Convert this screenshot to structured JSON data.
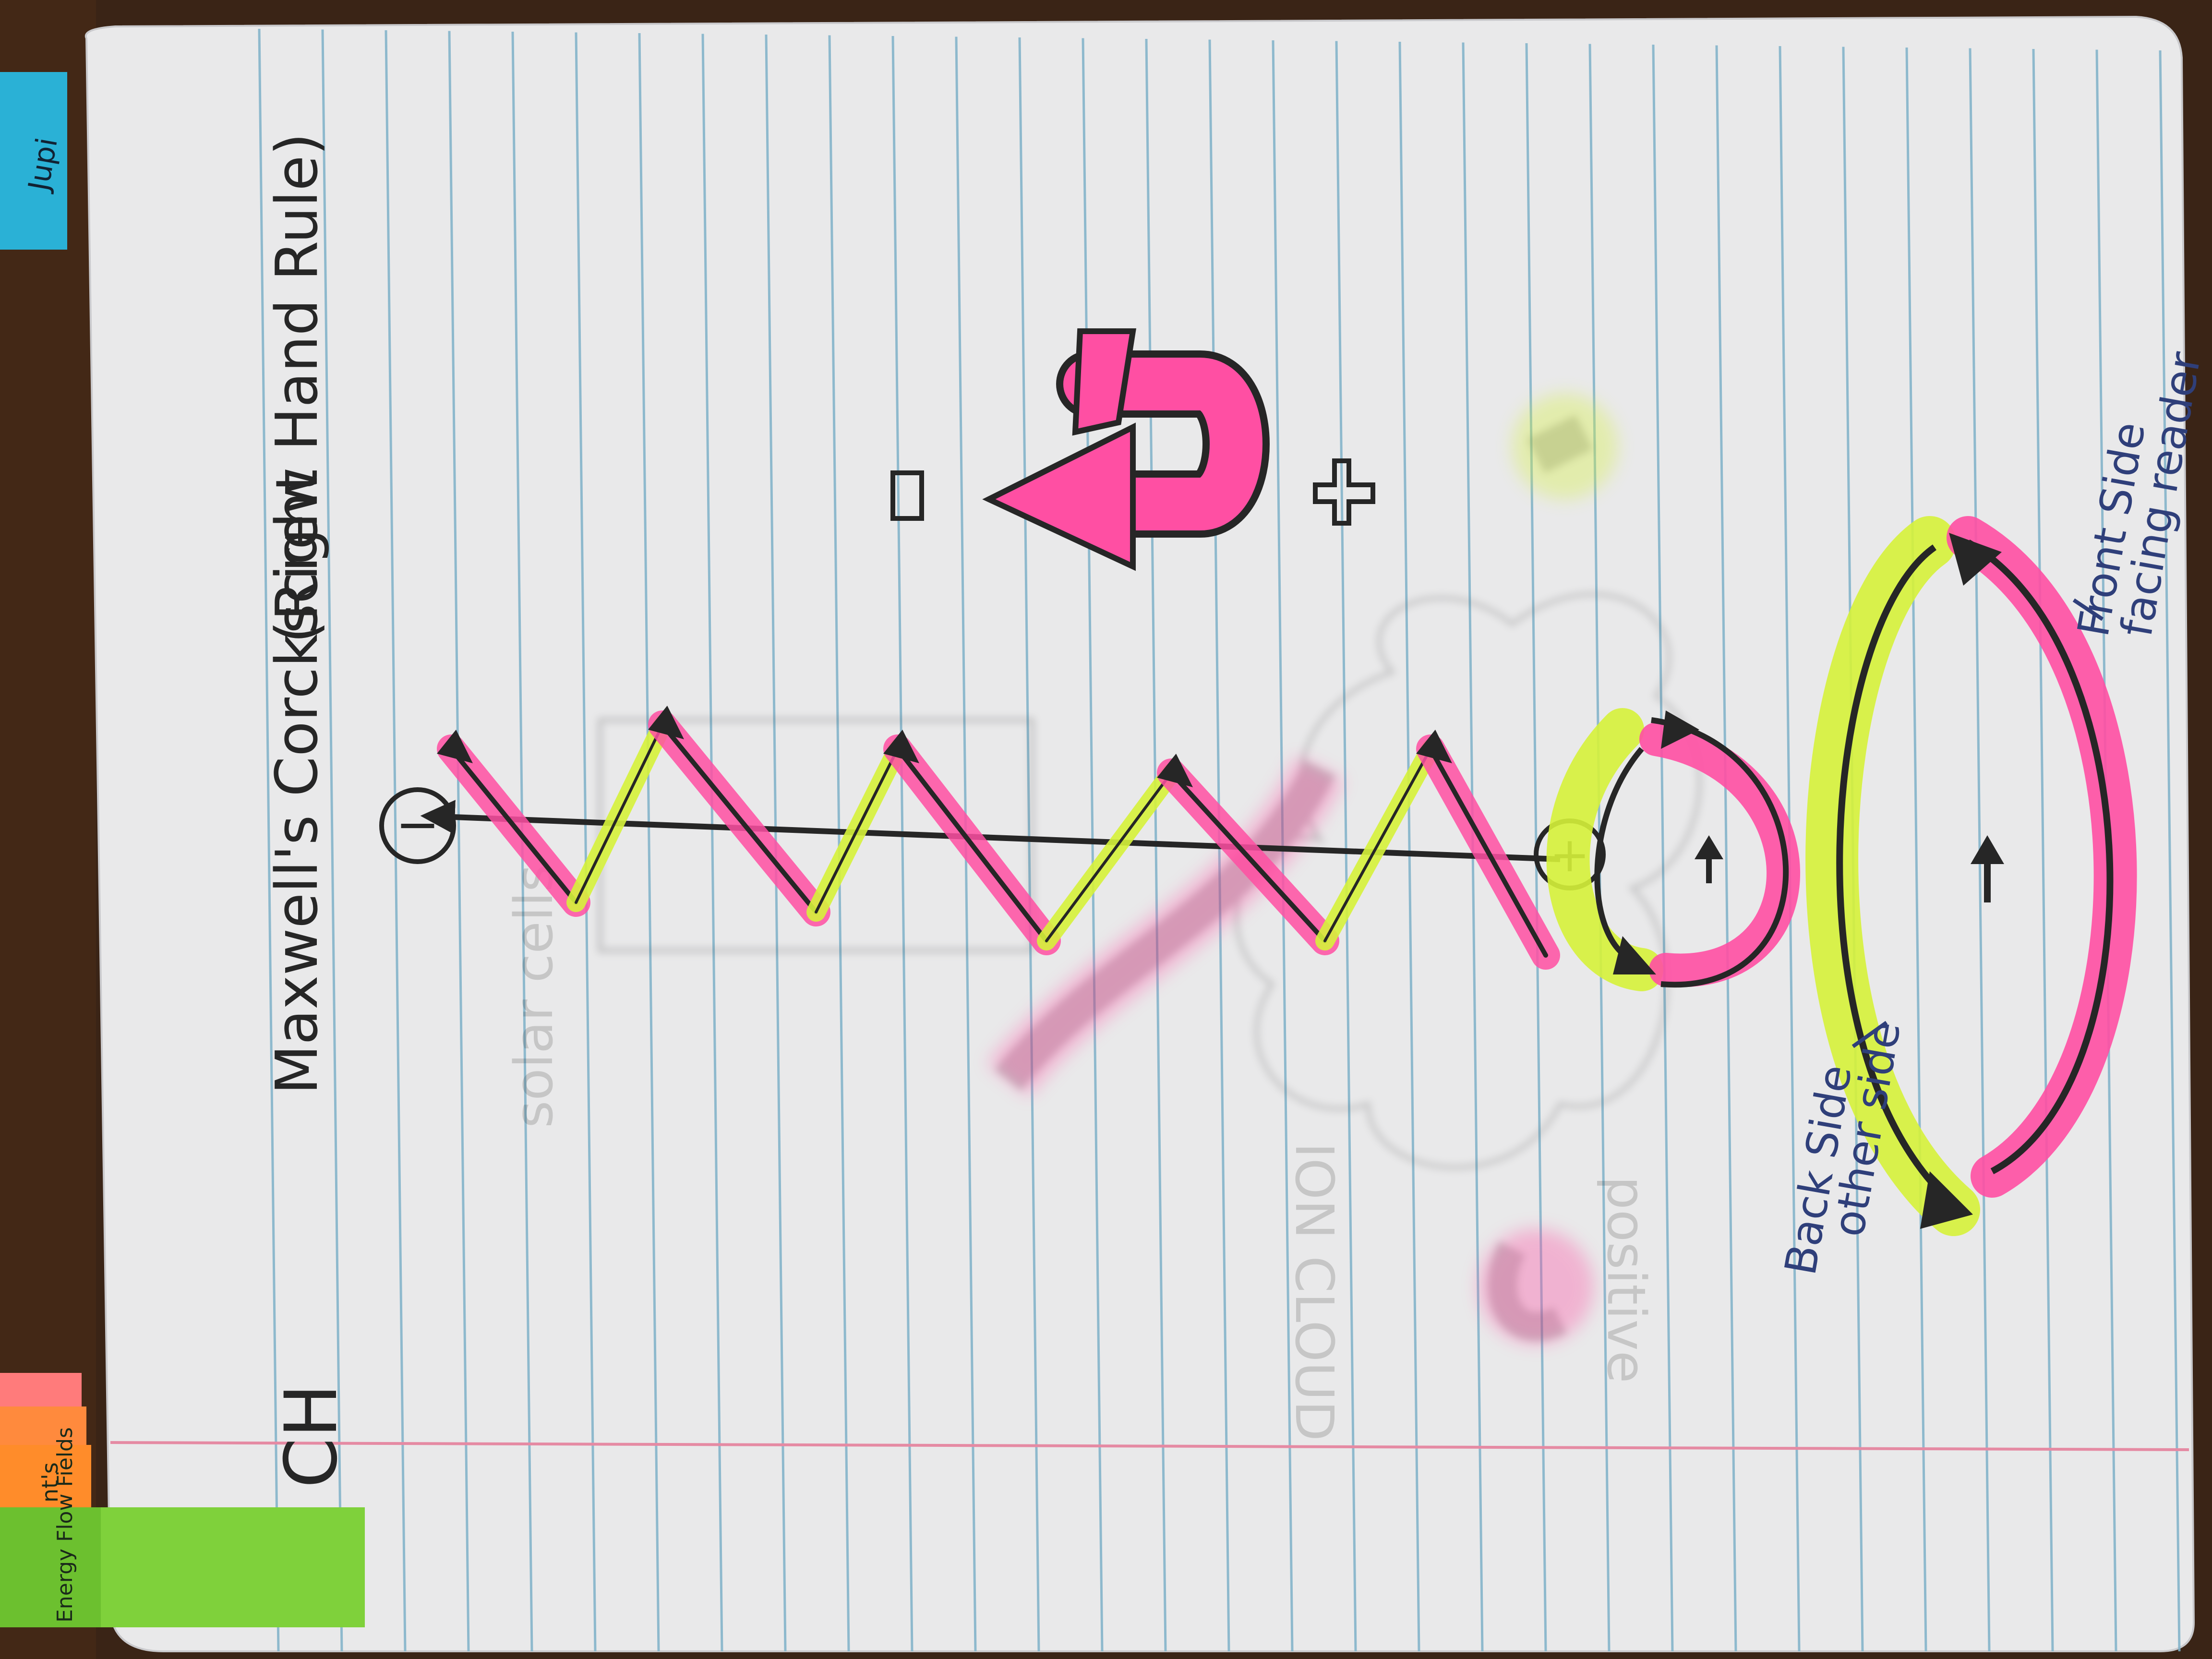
{
  "page": {
    "title": "Maxwell's Corckscrew",
    "subtitle": "(Right Hand Rule)",
    "initials": "CH",
    "minus_sign": "−",
    "plus_sign": "+",
    "charge_negative": "−",
    "charge_positive": "+",
    "back_side_label": "Back Side",
    "other_side_label": "other side",
    "front_side_label": "Front Side",
    "facing_reader_label": "facing reader"
  },
  "tabs": {
    "top_right": "Jupi",
    "left_orange": "nt's",
    "left_green": "Energy Flow Fields"
  },
  "bleed_through": {
    "ion_cloud": "ION CLOUD",
    "positive": "positive",
    "solar_cell": "solar cells"
  },
  "colors": {
    "paper": "#e9e9ea",
    "rule_line": "#7fb1c9",
    "margin_line": "#e58aa3",
    "pink": "#ff4fa3",
    "yellow": "#d6f23a",
    "ink": "#262626",
    "blue_ink": "#2f3f7a",
    "desk": "#3a2416"
  }
}
